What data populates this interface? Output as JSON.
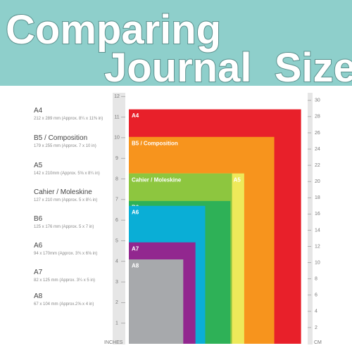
{
  "header": {
    "line1": "Comparing",
    "line2": "Journal  Sizes"
  },
  "chart_data": {
    "type": "size-compare",
    "inch_axis": {
      "label": "INCHES",
      "ticks": [
        1,
        2,
        3,
        4,
        5,
        6,
        7,
        8,
        9,
        10,
        11,
        12
      ]
    },
    "cm_axis": {
      "label": "CM",
      "ticks": [
        2,
        4,
        6,
        8,
        10,
        12,
        14,
        16,
        18,
        20,
        22,
        24,
        26,
        28,
        30
      ]
    },
    "sizes": [
      {
        "name": "A4",
        "dims": "212 x 289 mm (Approx. 8¼ x 11⅜ in)",
        "width_mm": 212,
        "height_mm": 289,
        "color": "#e8202a"
      },
      {
        "name": "B5 / Composition",
        "dims": "179 x 255 mm (Approx. 7 x 10 in)",
        "width_mm": 179,
        "height_mm": 255,
        "color": "#f7941d"
      },
      {
        "name": "A5",
        "dims": "142 x 210mm (Approx. 5⅝ x 8¼ in)",
        "width_mm": 142,
        "height_mm": 210,
        "color": "#eee95a"
      },
      {
        "name": "Cahier / Moleskine",
        "dims": "127 x 210 mm (Approx. 5 x 8¼ in)",
        "width_mm": 127,
        "height_mm": 210,
        "color": "#8dc63f"
      },
      {
        "name": "B6",
        "dims": "125 x 176 mm (Approx. 5 x 7 in)",
        "width_mm": 125,
        "height_mm": 176,
        "color": "#2eb157"
      },
      {
        "name": "A6",
        "dims": "94 x 170mm (Approx. 3¾ x 6⅝ in)",
        "width_mm": 94,
        "height_mm": 170,
        "color": "#0aaed6"
      },
      {
        "name": "A7",
        "dims": "82 x 125 mm (Approx. 3¼ x 5 in)",
        "width_mm": 82,
        "height_mm": 125,
        "color": "#92278f"
      },
      {
        "name": "A8",
        "dims": "67 x 104 mm (Approx.2⅝ x 4 in)",
        "width_mm": 67,
        "height_mm": 104,
        "color": "#a7a9ac"
      }
    ]
  }
}
